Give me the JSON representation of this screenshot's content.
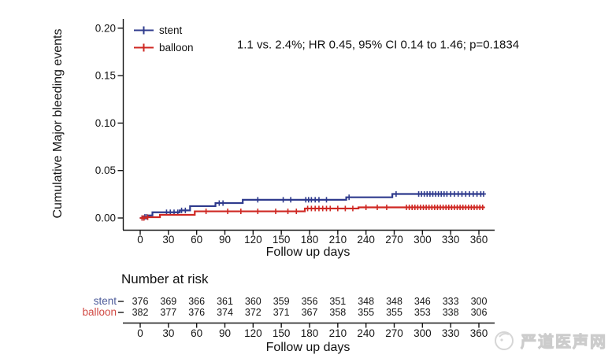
{
  "annotation": {
    "text": "1.1 vs. 2.4%; HR 0.45, 95% CI 0.14 to 1.46; p=0.1834"
  },
  "chart_data": {
    "type": "line",
    "subtype": "cumulative-incidence-step-curves-with-censor-marks",
    "title": "",
    "ylabel": "Cumulative Major bleeding events",
    "xlabel": "Follow up days",
    "xlim": [
      0,
      366
    ],
    "ylim": [
      0,
      0.205
    ],
    "xticks": [
      0,
      30,
      60,
      90,
      120,
      150,
      180,
      210,
      240,
      270,
      300,
      330,
      360
    ],
    "yticks": [
      0.0,
      0.05,
      0.1,
      0.15,
      0.2
    ],
    "grid": false,
    "legend_position": "top-left-inside",
    "series": [
      {
        "name": "stent",
        "color": "#2f3b8d",
        "steps": [
          [
            0,
            0.0
          ],
          [
            3,
            0.0013
          ],
          [
            8,
            0.0027
          ],
          [
            13,
            0.006
          ],
          [
            42,
            0.008
          ],
          [
            53,
            0.0125
          ],
          [
            80,
            0.0157
          ],
          [
            109,
            0.0192
          ],
          [
            219,
            0.0218
          ],
          [
            268,
            0.0253
          ],
          [
            366,
            0.0253
          ]
        ],
        "censor_days": [
          2,
          5,
          7,
          28,
          32,
          36,
          40,
          44,
          48,
          84,
          88,
          125,
          152,
          160,
          176,
          179,
          182,
          186,
          190,
          198,
          222,
          272,
          296,
          299,
          302,
          305,
          308,
          311,
          314,
          317,
          320,
          323,
          326,
          330,
          334,
          338,
          342,
          346,
          350,
          354,
          358,
          362,
          365
        ]
      },
      {
        "name": "balloon",
        "color": "#cf2823",
        "steps": [
          [
            0,
            0.0
          ],
          [
            6,
            0.0008
          ],
          [
            21,
            0.0033
          ],
          [
            58,
            0.007
          ],
          [
            175,
            0.01
          ],
          [
            232,
            0.0112
          ],
          [
            366,
            0.0112
          ]
        ],
        "censor_days": [
          2,
          4,
          8,
          70,
          93,
          107,
          125,
          144,
          157,
          166,
          178,
          182,
          186,
          190,
          194,
          198,
          202,
          210,
          218,
          226,
          240,
          252,
          262,
          283,
          286,
          289,
          292,
          295,
          298,
          301,
          304,
          307,
          310,
          313,
          316,
          319,
          322,
          325,
          328,
          331,
          334,
          337,
          340,
          343,
          346,
          349,
          352,
          355,
          358,
          361,
          364
        ]
      }
    ]
  },
  "risk_table": {
    "title": "Number at risk",
    "xlabel": "Follow up days",
    "xticks": [
      0,
      30,
      60,
      90,
      120,
      150,
      180,
      210,
      240,
      270,
      300,
      330,
      360
    ],
    "rows": [
      {
        "label": "stent",
        "color": "#4d5b9a",
        "values": [
          376,
          369,
          366,
          361,
          360,
          359,
          356,
          351,
          348,
          348,
          346,
          333,
          300
        ]
      },
      {
        "label": "balloon",
        "color": "#d14a44",
        "values": [
          382,
          377,
          376,
          374,
          372,
          371,
          367,
          358,
          355,
          355,
          353,
          338,
          306
        ]
      }
    ]
  },
  "watermark": {
    "text": "严道医声网"
  },
  "colors": {
    "axis": "#161616",
    "background": "#ffffff",
    "watermark": "#cccccc"
  }
}
